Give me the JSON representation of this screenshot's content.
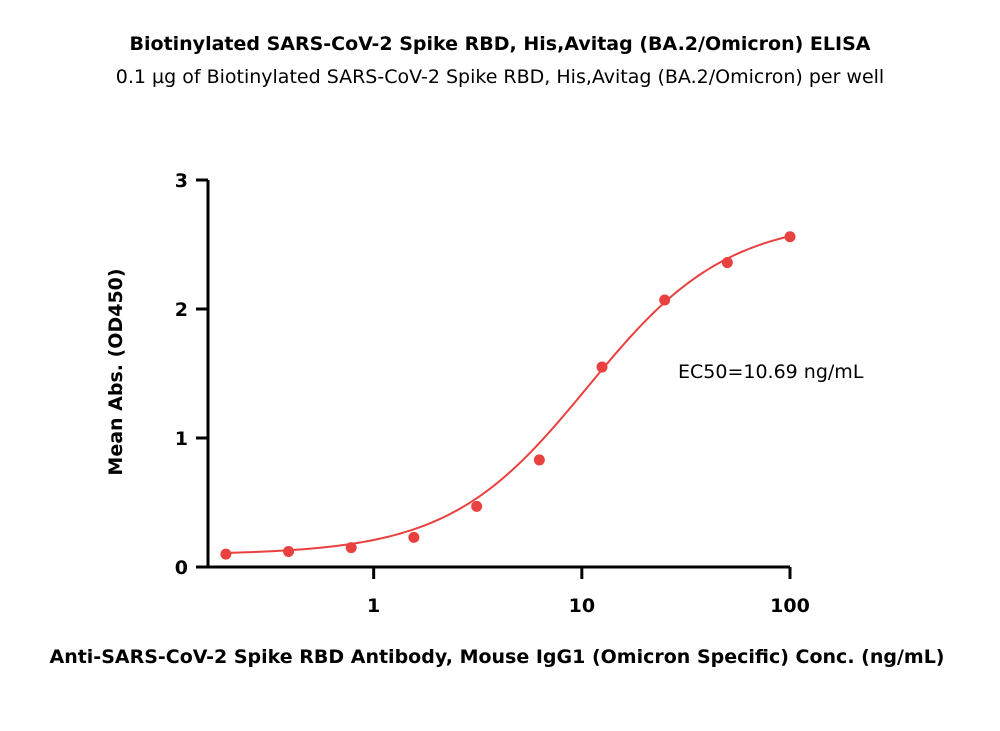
{
  "chart_data": {
    "type": "scatter",
    "title": "Biotinylated SARS-CoV-2 Spike RBD, His,Avitag (BA.2/Omicron)  ELISA",
    "subtitle": "0.1 µg of Biotinylated SARS-CoV-2 Spike RBD, His,Avitag (BA.2/Omicron)  per well",
    "xlabel": "Anti-SARS-CoV-2 Spike RBD Antibody, Mouse IgG1 (Omicron Specific) Conc. (ng/mL)",
    "ylabel": "Mean Abs. (OD450)",
    "x_scale": "log",
    "xlim": [
      0.16,
      100
    ],
    "ylim": [
      0,
      3
    ],
    "x_ticks": [
      {
        "value": 1,
        "label": "1"
      },
      {
        "value": 10,
        "label": "10"
      },
      {
        "value": 100,
        "label": "100"
      }
    ],
    "y_ticks": [
      {
        "value": 0,
        "label": "0"
      },
      {
        "value": 1,
        "label": "1"
      },
      {
        "value": 2,
        "label": "2"
      },
      {
        "value": 3,
        "label": "3"
      }
    ],
    "grid": false,
    "series": [
      {
        "color": "#e8413f",
        "x": [
          0.195,
          0.39,
          0.78,
          1.56,
          3.125,
          6.25,
          12.5,
          25,
          50,
          100
        ],
        "y": [
          0.1,
          0.12,
          0.15,
          0.23,
          0.47,
          0.83,
          1.55,
          2.07,
          2.36,
          2.56
        ]
      }
    ],
    "fit": {
      "type": "4PL",
      "bottom": 0.095,
      "top": 2.7,
      "ec50": 10.69,
      "hill": 1.3,
      "color": "#e8413f"
    },
    "annotation": "EC50=10.69 ng/mL"
  }
}
